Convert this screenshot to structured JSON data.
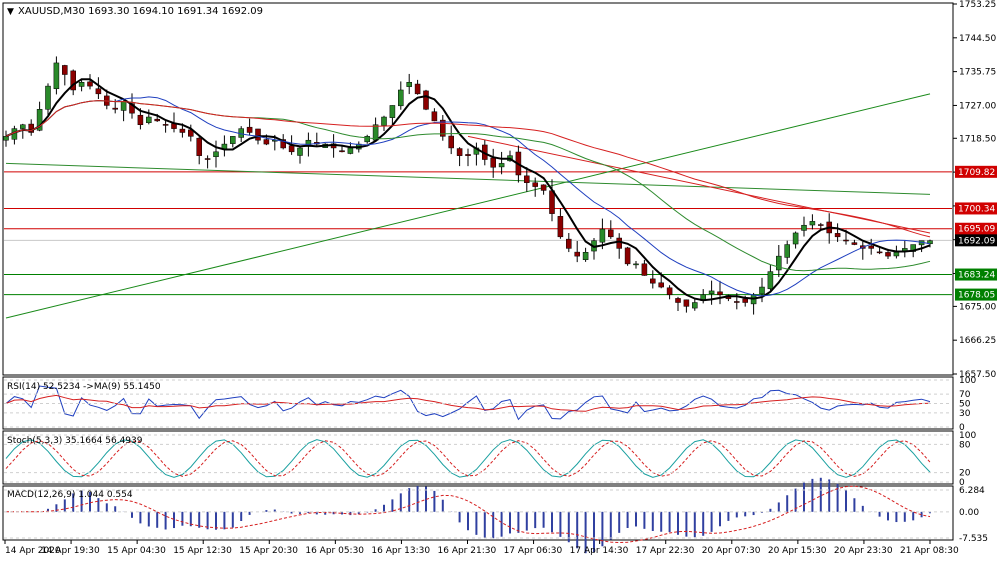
{
  "header": {
    "title": "XAUUSD,M30  1693.30 1694.10 1691.34 1692.09"
  },
  "price_axis": [
    "1753.25",
    "1744.50",
    "1735.75",
    "1727.00",
    "1718.50",
    "1709.75",
    "1701.00",
    "1692.25",
    "1683.50",
    "1675.00",
    "1666.25",
    "1657.50"
  ],
  "levels": [
    {
      "label": "1709.82",
      "value": 1709.82,
      "color": "#d00000",
      "text_color": "#ffffff"
    },
    {
      "label": "1700.34",
      "value": 1700.34,
      "color": "#d00000",
      "text_color": "#ffffff"
    },
    {
      "label": "1695.09",
      "value": 1695.09,
      "color": "#d00000",
      "text_color": "#ffffff"
    },
    {
      "label": "1692.09",
      "value": 1692.09,
      "color": "#000000",
      "text_color": "#ffffff"
    },
    {
      "label": "1683.24",
      "value": 1683.24,
      "color": "#008000",
      "text_color": "#ffffff"
    },
    {
      "label": "1678.05",
      "value": 1678.05,
      "color": "#008000",
      "text_color": "#ffffff"
    }
  ],
  "rsi": {
    "label": "RSI(14) 52.5234  ->MA(9) 55.1450",
    "ticks": [
      "100",
      "70",
      "50",
      "30",
      "0"
    ]
  },
  "stoch": {
    "label": "Stoch(5,3,3) 35.1664 56.4939",
    "ticks": [
      "100",
      "80",
      "20",
      "0"
    ]
  },
  "macd": {
    "label": "MACD(12,26,9) 1.044 0.554",
    "ticks": [
      "6.284",
      "0.00",
      "-7.535"
    ]
  },
  "time_axis": [
    "14 Apr 2020",
    "14 Apr 19:30",
    "15 Apr 04:30",
    "15 Apr 12:30",
    "15 Apr 20:30",
    "16 Apr 05:30",
    "16 Apr 13:30",
    "16 Apr 21:30",
    "17 Apr 06:30",
    "17 Apr 14:30",
    "17 Apr 22:30",
    "20 Apr 07:30",
    "20 Apr 15:30",
    "20 Apr 23:30",
    "21 Apr 08:30"
  ],
  "colors": {
    "bull": "#2a8a2a",
    "bear": "#8b0000",
    "ma_fast": "#000000",
    "ma_mid": "#1f3fbf",
    "ma_slow": "#2e8b2e",
    "ma_long": "#d62020",
    "trend_up": "#1a8a1a",
    "trend_down": "#d62020"
  },
  "chart_data": {
    "type": "candlestick",
    "symbol": "XAUUSD",
    "timeframe": "M30",
    "ohlc_last": {
      "open": 1693.3,
      "high": 1694.1,
      "low": 1691.34,
      "close": 1692.09
    },
    "ylim": [
      1657.5,
      1753.25
    ],
    "close_series": [
      1719,
      1721,
      1722,
      1720,
      1726,
      1732,
      1738,
      1735,
      1731,
      1733,
      1732,
      1730,
      1727,
      1726,
      1728,
      1725,
      1722,
      1724,
      1723,
      1722,
      1721,
      1720,
      1719,
      1714,
      1713,
      1715,
      1717,
      1719,
      1721,
      1720,
      1718,
      1717,
      1718,
      1716,
      1715,
      1716,
      1718,
      1717,
      1717,
      1716,
      1715,
      1716,
      1717,
      1719,
      1722,
      1724,
      1727,
      1731,
      1733,
      1730,
      1726,
      1723,
      1719,
      1716,
      1714,
      1714,
      1716,
      1713,
      1711,
      1712,
      1714,
      1709,
      1707,
      1706,
      1705,
      1699,
      1693,
      1690,
      1688,
      1689,
      1692,
      1695,
      1693,
      1690,
      1686,
      1686,
      1683,
      1681,
      1680,
      1678,
      1676,
      1675,
      1676,
      1678,
      1679,
      1678,
      1677,
      1676,
      1676,
      1678,
      1680,
      1684,
      1688,
      1691,
      1694,
      1696,
      1697,
      1696,
      1694,
      1693,
      1692,
      1691,
      1690,
      1690,
      1689,
      1688,
      1689,
      1690,
      1691,
      1692,
      1692
    ],
    "trendlines": [
      {
        "from": [
          0,
          1672
        ],
        "to": [
          110,
          1730
        ],
        "color": "trend_up"
      },
      {
        "from": [
          0,
          1712
        ],
        "to": [
          110,
          1704
        ],
        "color": "ma_slow"
      },
      {
        "from": [
          55,
          1719
        ],
        "to": [
          110,
          1694
        ],
        "color": "trend_down"
      }
    ],
    "horizontal_levels": [
      1709.82,
      1700.34,
      1695.09,
      1692.09,
      1683.24,
      1678.05
    ]
  }
}
